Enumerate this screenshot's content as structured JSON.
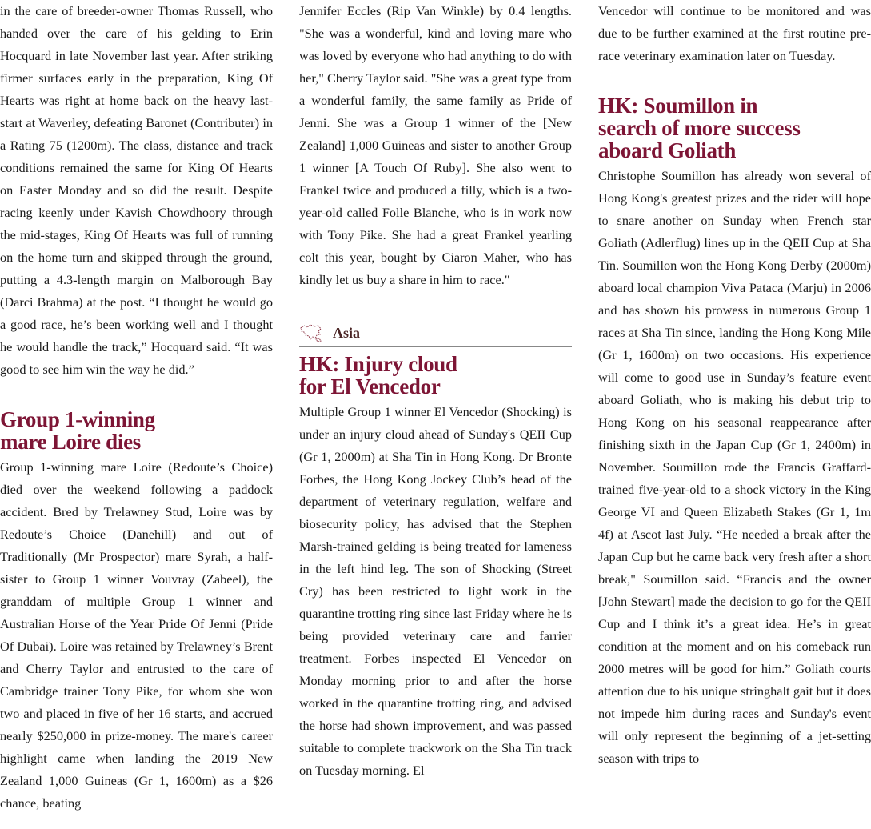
{
  "col1": {
    "p1": "in the care of breeder-owner Thomas Russell, who handed over the care of his gelding to Erin Hocquard in late November last year. After striking firmer surfaces early in the preparation, King Of Hearts was right at home back on the heavy last-start at Waverley, defeating Baronet (Contributer) in a Rating 75 (1200m). The class, distance and track conditions remained the same for King Of Hearts on Easter Monday and so did the result. Despite racing keenly under Kavish Chowdhoory through the mid-stages, King Of Hearts was full of running on the home turn and skipped through the ground, putting a 4.3-length margin on Malborough Bay (Darci Brahma) at the post. “I thought he would go a good race, he’s been working well and I thought he would handle the track,” Hocquard said. “It was good to see him win the way he did.”",
    "h1": "Group 1-winning",
    "h2": "mare Loire dies",
    "p2": "Group 1-winning mare Loire (Redoute’s Choice) died over the weekend following a paddock accident. Bred by Trelawney Stud, Loire was by Redoute’s Choice (Danehill) and out of Traditionally (Mr Prospector) mare Syrah, a half-sister to Group 1 winner Vouvray (Zabeel), the granddam of multiple Group 1 winner and Australian Horse of the Year Pride Of Jenni (Pride Of Dubai). Loire was retained by Trelawney’s Brent and Cherry Taylor and entrusted to the care of Cambridge trainer Tony Pike, for whom she won two and placed in five of her 16 starts, and accrued nearly $250,000 in prize-money. The mare's career highlight came when landing the 2019 New Zealand 1,000 Guineas (Gr 1, 1600m) as a $26 chance, beating"
  },
  "col2": {
    "p1": "Jennifer Eccles (Rip Van Winkle) by 0.4 lengths. \"She was a wonderful, kind and loving mare who was loved by everyone who had anything to do with her,\" Cherry Taylor said. \"She was a great type from a wonderful family, the same family as Pride of Jenni. She was a Group 1 winner of the [New Zealand] 1,000 Guineas and sister to another Group 1 winner [A Touch Of Ruby]. She also went to Frankel twice and produced a filly, which is a two-year-old called Folle Blanche, who is in work now with Tony Pike. She had a great Frankel yearling colt this year, bought by Ciaron Maher, who has kindly let us buy a share in him to race.\"",
    "section": "Asia",
    "section_icon": "asia-map-icon",
    "h1": "HK: Injury cloud",
    "h2": "for El Vencedor",
    "p2": "Multiple Group 1 winner El Vencedor (Shocking) is under an injury cloud ahead of Sunday's QEII Cup (Gr 1, 2000m) at Sha Tin in Hong Kong. Dr Bronte Forbes, the Hong Kong Jockey Club’s head of the department of veterinary regulation, welfare and biosecurity policy, has advised that the Stephen Marsh-trained gelding is being treated for lameness in the left hind leg. The son of Shocking (Street Cry) has been restricted to light work in the quarantine trotting ring since last Friday where he is being provided veterinary care and farrier treatment. Forbes inspected El Vencedor on Monday morning prior to and after the horse worked in the quarantine trotting ring, and advised the horse had shown improvement, and was passed suitable to complete trackwork on the Sha Tin track on Tuesday morning. El"
  },
  "col3": {
    "p1": "Vencedor will continue to be monitored and was due to be further examined at the first routine pre-race veterinary examination later on Tuesday.",
    "h1": "HK: Soumillon in",
    "h2": "search of more success",
    "h3": "aboard Goliath",
    "p2": "Christophe Soumillon has already won several of Hong Kong's greatest prizes and the rider will hope to snare another on Sunday when French star Goliath (Adlerflug) lines up in the QEII Cup at Sha Tin. Soumillon won the Hong Kong Derby (2000m) aboard local champion Viva Pataca (Marju) in 2006 and has shown his prowess in numerous Group 1 races at Sha Tin since, landing the Hong Kong Mile (Gr 1, 1600m) on two occasions. His experience will come to good use in Sunday’s feature event aboard Goliath, who is making his debut trip to Hong Kong on his seasonal reappearance after finishing sixth in the Japan Cup (Gr 1, 2400m) in November. Soumillon rode the Francis Graffard-trained five-year-old to a shock victory in the King George VI and Queen Elizabeth Stakes (Gr 1, 1m 4f) at Ascot last July. “He needed a break after the Japan Cup but he came back very fresh after a short break,\" Soumillon said. “Francis and the owner [John Stewart] made the decision to go for the QEII Cup and I think it’s a great idea. He’s in great condition at the moment and on his comeback run 2000 metres will be good for him.” Goliath courts attention due to his unique stringhalt gait but it does not impede him during races and Sunday's event will only represent the beginning of a jet-setting season with trips to"
  },
  "colors": {
    "heading": "#7d1535",
    "section": "#4a2424"
  }
}
